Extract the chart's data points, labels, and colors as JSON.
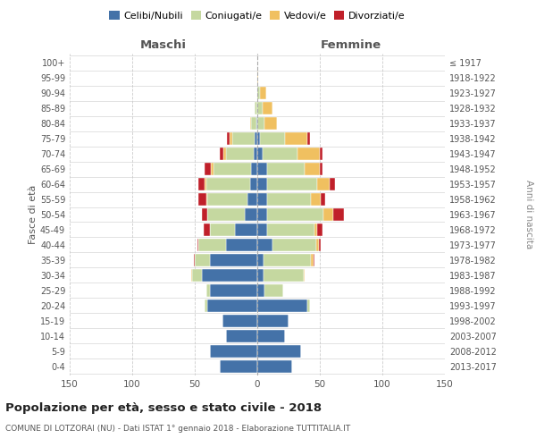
{
  "age_groups": [
    "0-4",
    "5-9",
    "10-14",
    "15-19",
    "20-24",
    "25-29",
    "30-34",
    "35-39",
    "40-44",
    "45-49",
    "50-54",
    "55-59",
    "60-64",
    "65-69",
    "70-74",
    "75-79",
    "80-84",
    "85-89",
    "90-94",
    "95-99",
    "100+"
  ],
  "birth_years": [
    "2013-2017",
    "2008-2012",
    "2003-2007",
    "1998-2002",
    "1993-1997",
    "1988-1992",
    "1983-1987",
    "1978-1982",
    "1973-1977",
    "1968-1972",
    "1963-1967",
    "1958-1962",
    "1953-1957",
    "1948-1952",
    "1943-1947",
    "1938-1942",
    "1933-1937",
    "1928-1932",
    "1923-1927",
    "1918-1922",
    "≤ 1917"
  ],
  "maschi": {
    "celibi": [
      30,
      38,
      25,
      28,
      40,
      38,
      44,
      38,
      25,
      18,
      10,
      8,
      6,
      5,
      3,
      2,
      1,
      0,
      0,
      0,
      0
    ],
    "coniugati": [
      0,
      0,
      0,
      0,
      2,
      3,
      8,
      12,
      22,
      20,
      30,
      32,
      35,
      30,
      22,
      18,
      4,
      2,
      0,
      0,
      0
    ],
    "vedovi": [
      0,
      0,
      0,
      0,
      0,
      0,
      1,
      0,
      0,
      0,
      0,
      1,
      1,
      2,
      2,
      2,
      1,
      0,
      0,
      0,
      0
    ],
    "divorziati": [
      0,
      0,
      0,
      0,
      0,
      0,
      0,
      1,
      1,
      5,
      4,
      6,
      5,
      5,
      3,
      2,
      0,
      0,
      0,
      0,
      0
    ]
  },
  "femmine": {
    "nubili": [
      28,
      35,
      22,
      25,
      40,
      6,
      5,
      5,
      12,
      8,
      8,
      8,
      8,
      8,
      4,
      2,
      0,
      0,
      0,
      0,
      0
    ],
    "coniugate": [
      0,
      0,
      0,
      0,
      2,
      15,
      32,
      38,
      35,
      38,
      45,
      35,
      40,
      30,
      28,
      20,
      6,
      4,
      2,
      0,
      0
    ],
    "vedove": [
      0,
      0,
      0,
      0,
      0,
      0,
      1,
      2,
      2,
      2,
      8,
      8,
      10,
      12,
      18,
      18,
      10,
      8,
      5,
      1,
      0
    ],
    "divorziate": [
      0,
      0,
      0,
      0,
      0,
      0,
      0,
      1,
      2,
      4,
      8,
      3,
      4,
      2,
      2,
      2,
      0,
      0,
      0,
      0,
      0
    ]
  },
  "colors": {
    "celibi_nubili": "#4472a8",
    "coniugati": "#c5d8a0",
    "vedovi": "#f0c060",
    "divorziati": "#c0202a"
  },
  "xlim": 150,
  "title": "Popolazione per età, sesso e stato civile - 2018",
  "subtitle": "COMUNE DI LOTZORAI (NU) - Dati ISTAT 1° gennaio 2018 - Elaborazione TUTTITALIA.IT",
  "ylabel": "Fasce di età",
  "ylabel_right": "Anni di nascita",
  "xlabel_maschi": "Maschi",
  "xlabel_femmine": "Femmine"
}
